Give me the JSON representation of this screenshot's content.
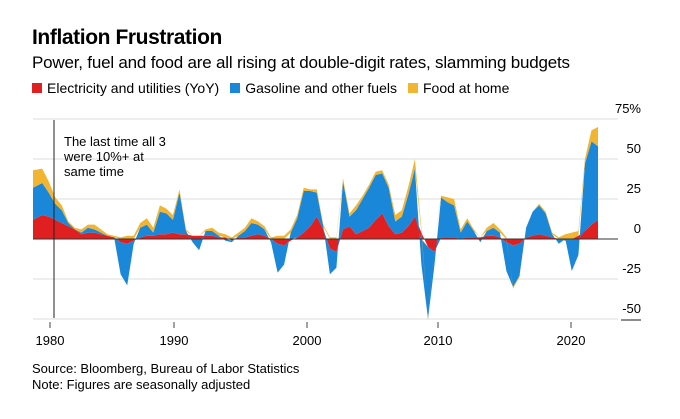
{
  "header": {
    "title": "Inflation Frustration",
    "subtitle": "Power, fuel and food are all rising at double-digit rates, slamming budgets"
  },
  "footer": {
    "source": "Source: Bloomberg, Bureau of Labor Statistics",
    "note": "Note: Figures are seasonally adjusted"
  },
  "chart_data": {
    "type": "area",
    "stacked": true,
    "title": "Inflation Frustration",
    "subtitle": "Power, fuel and food are all rising at double-digit rates, slamming budgets",
    "xlabel": "",
    "ylabel": "",
    "y_unit": "%",
    "ylim": [
      -60,
      75
    ],
    "xlim": [
      1979.3,
      2022.5
    ],
    "yticks": [
      {
        "value": 75,
        "label": "75%"
      },
      {
        "value": 50,
        "label": "50"
      },
      {
        "value": 25,
        "label": "25"
      },
      {
        "value": 0,
        "label": "0"
      },
      {
        "value": -25,
        "label": "-25"
      },
      {
        "value": -50,
        "label": "-50"
      }
    ],
    "xticks": [
      {
        "value": 1980,
        "label": "1980"
      },
      {
        "value": 1990,
        "label": "1990"
      },
      {
        "value": 2000,
        "label": "2000"
      },
      {
        "value": 2010,
        "label": "2010"
      },
      {
        "value": 2020,
        "label": "2020"
      }
    ],
    "grid": true,
    "legend_position": "top-left",
    "annotation": {
      "x": 1980.5,
      "lines": [
        "The last time all 3",
        "were 10%+ at",
        "same time"
      ]
    },
    "x": [
      1979.3,
      1980.0,
      1980.5,
      1981.0,
      1981.5,
      1982.0,
      1982.5,
      1983.0,
      1983.5,
      1984.0,
      1984.5,
      1985.0,
      1985.5,
      1986.0,
      1986.5,
      1987.0,
      1987.5,
      1988.0,
      1988.5,
      1989.0,
      1989.5,
      1990.0,
      1990.5,
      1991.0,
      1991.5,
      1992.0,
      1992.5,
      1993.0,
      1993.5,
      1994.0,
      1994.5,
      1995.0,
      1995.5,
      1996.0,
      1996.5,
      1997.0,
      1997.5,
      1998.0,
      1998.5,
      1999.0,
      1999.5,
      2000.0,
      2000.5,
      2001.0,
      2001.5,
      2002.0,
      2002.5,
      2003.0,
      2003.5,
      2004.0,
      2004.5,
      2005.0,
      2005.5,
      2006.0,
      2006.5,
      2007.0,
      2007.5,
      2008.0,
      2008.5,
      2009.0,
      2009.5,
      2010.0,
      2010.5,
      2011.0,
      2011.5,
      2012.0,
      2012.5,
      2013.0,
      2013.5,
      2014.0,
      2014.5,
      2015.0,
      2015.5,
      2016.0,
      2016.5,
      2017.0,
      2017.5,
      2018.0,
      2018.5,
      2019.0,
      2019.5,
      2020.0,
      2020.5,
      2021.0,
      2021.5,
      2022.0,
      2022.5
    ],
    "series": [
      {
        "name": "Electricity and utilities (YoY)",
        "color": "#e02020",
        "values": [
          12,
          15,
          14,
          12,
          10,
          8,
          6,
          3,
          4,
          4,
          3,
          2,
          1,
          -2,
          -3,
          -1,
          1,
          2,
          2,
          3,
          3,
          4,
          3,
          3,
          2,
          2,
          2,
          2,
          1,
          1,
          -1,
          1,
          1,
          2,
          3,
          2,
          0,
          -3,
          -4,
          -1,
          1,
          4,
          8,
          14,
          6,
          -6,
          -8,
          6,
          8,
          3,
          5,
          7,
          12,
          16,
          8,
          3,
          4,
          8,
          14,
          4,
          -5,
          -8,
          1,
          1,
          1,
          0,
          1,
          1,
          1,
          2,
          2,
          1,
          -2,
          -4,
          -3,
          1,
          2,
          3,
          2,
          1,
          0,
          -1,
          0,
          2,
          5,
          9,
          12
        ]
      },
      {
        "name": "Gasoline and other fuels",
        "color": "#1b87d8",
        "values": [
          20,
          20,
          15,
          10,
          8,
          2,
          0,
          1,
          3,
          2,
          1,
          0,
          0,
          -20,
          -26,
          -2,
          6,
          7,
          2,
          14,
          13,
          8,
          26,
          2,
          -2,
          -7,
          3,
          3,
          1,
          -1,
          -1,
          1,
          4,
          8,
          6,
          4,
          -2,
          -18,
          -12,
          4,
          12,
          26,
          22,
          15,
          2,
          -16,
          -10,
          30,
          6,
          15,
          20,
          25,
          28,
          25,
          24,
          8,
          10,
          20,
          30,
          -16,
          -45,
          -8,
          25,
          22,
          20,
          4,
          10,
          4,
          -2,
          3,
          5,
          3,
          -18,
          -26,
          -20,
          6,
          15,
          18,
          14,
          2,
          -3,
          0,
          -20,
          -10,
          42,
          52,
          46
        ]
      },
      {
        "name": "Food at home",
        "color": "#f2b531",
        "values": [
          11,
          9,
          7,
          4,
          3,
          1,
          1,
          2,
          2,
          3,
          2,
          1,
          1,
          1,
          2,
          2,
          3,
          4,
          3,
          4,
          3,
          3,
          2,
          1,
          0,
          0,
          1,
          2,
          2,
          2,
          1,
          2,
          2,
          3,
          2,
          2,
          1,
          2,
          2,
          2,
          2,
          2,
          1,
          2,
          1,
          1,
          1,
          2,
          2,
          3,
          2,
          2,
          2,
          2,
          2,
          4,
          4,
          5,
          6,
          3,
          -1,
          0,
          1,
          3,
          4,
          2,
          2,
          1,
          0,
          2,
          3,
          2,
          1,
          -1,
          -1,
          0,
          0,
          1,
          1,
          1,
          1,
          3,
          4,
          3,
          3,
          7,
          12
        ]
      }
    ]
  }
}
